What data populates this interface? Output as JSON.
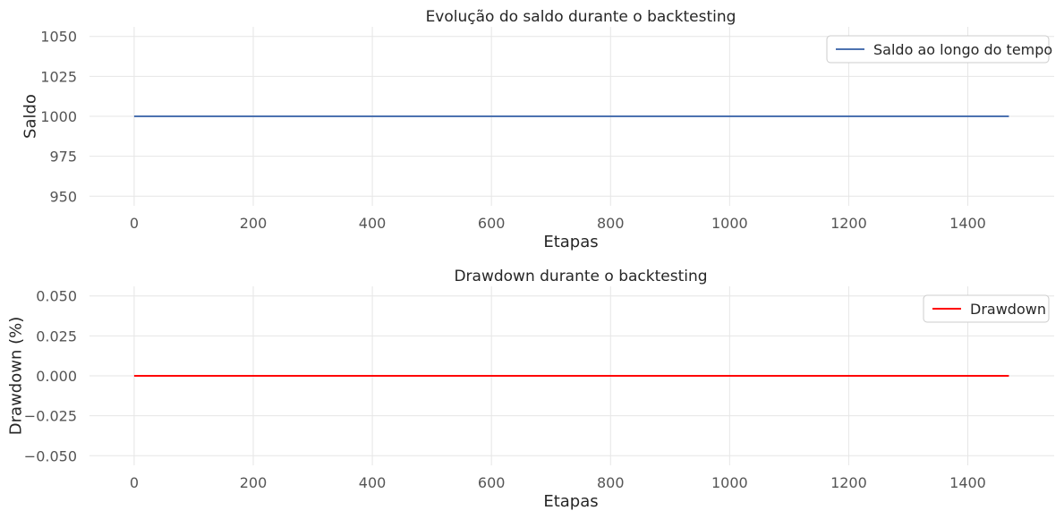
{
  "chart_data": [
    {
      "type": "line",
      "title": "Evolução do saldo durante o backtesting",
      "xlabel": "Etapas",
      "ylabel": "Saldo",
      "xlim": [
        -75,
        1545
      ],
      "ylim": [
        944,
        1056
      ],
      "xticks": [
        0,
        200,
        400,
        600,
        800,
        1000,
        1200,
        1400
      ],
      "xtick_labels": [
        "0",
        "200",
        "400",
        "600",
        "800",
        "1000",
        "1200",
        "1400"
      ],
      "yticks": [
        950,
        975,
        1000,
        1025,
        1050
      ],
      "ytick_labels": [
        "950",
        "975",
        "1000",
        "1025",
        "1050"
      ],
      "grid": true,
      "legend_position": "top-right",
      "series": [
        {
          "name": "Saldo ao longo do tempo",
          "color": "#4c72b0",
          "x": [
            0,
            1469
          ],
          "y": [
            1000,
            1000
          ]
        }
      ]
    },
    {
      "type": "line",
      "title": "Drawdown durante o backtesting",
      "xlabel": "Etapas",
      "ylabel": "Drawdown (%)",
      "xlim": [
        -75,
        1545
      ],
      "ylim": [
        -0.056,
        0.056
      ],
      "xticks": [
        0,
        200,
        400,
        600,
        800,
        1000,
        1200,
        1400
      ],
      "xtick_labels": [
        "0",
        "200",
        "400",
        "600",
        "800",
        "1000",
        "1200",
        "1400"
      ],
      "yticks": [
        -0.05,
        -0.025,
        0,
        0.025,
        0.05
      ],
      "ytick_labels": [
        "−0.050",
        "−0.025",
        "0.000",
        "0.025",
        "0.050"
      ],
      "grid": true,
      "legend_position": "top-right",
      "series": [
        {
          "name": "Drawdown",
          "color": "#ff0000",
          "x": [
            0,
            1469
          ],
          "y": [
            0,
            0
          ]
        }
      ]
    }
  ]
}
